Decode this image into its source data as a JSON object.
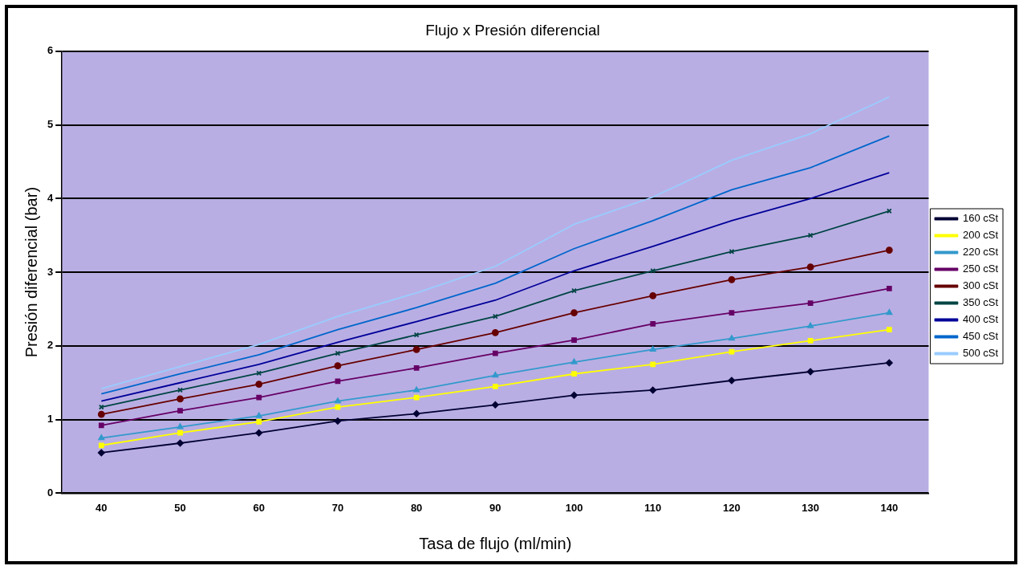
{
  "chart_data": {
    "type": "line",
    "title": "Flujo x Presión diferencial",
    "xlabel": "Tasa de flujo (ml/min)",
    "ylabel": "Presión diferencial (bar)",
    "categories": [
      "40",
      "50",
      "60",
      "70",
      "80",
      "90",
      "100",
      "110",
      "120",
      "130",
      "140"
    ],
    "ylim": [
      0,
      6
    ],
    "yticks": [
      0,
      1,
      2,
      3,
      4,
      5,
      6
    ],
    "grid": "y",
    "legend": "right",
    "series": [
      {
        "name": "160 cSt",
        "color": "#000033",
        "marker": "diamond",
        "values": [
          0.55,
          0.68,
          0.82,
          0.98,
          1.08,
          1.2,
          1.33,
          1.4,
          1.53,
          1.65,
          1.77
        ]
      },
      {
        "name": "200 cSt",
        "color": "#ffff00",
        "marker": "square",
        "values": [
          0.65,
          0.82,
          0.97,
          1.17,
          1.3,
          1.45,
          1.62,
          1.75,
          1.92,
          2.07,
          2.22
        ]
      },
      {
        "name": "220 cSt",
        "color": "#3399cc",
        "marker": "triangle",
        "values": [
          0.75,
          0.9,
          1.05,
          1.25,
          1.4,
          1.6,
          1.78,
          1.95,
          2.1,
          2.27,
          2.45
        ]
      },
      {
        "name": "250 cSt",
        "color": "#660066",
        "marker": "square",
        "values": [
          0.92,
          1.12,
          1.3,
          1.52,
          1.7,
          1.9,
          2.08,
          2.3,
          2.45,
          2.58,
          2.78
        ]
      },
      {
        "name": "300 cSt",
        "color": "#660000",
        "marker": "circle",
        "values": [
          1.07,
          1.28,
          1.48,
          1.73,
          1.95,
          2.18,
          2.45,
          2.68,
          2.9,
          3.07,
          3.3
        ]
      },
      {
        "name": "350 cSt",
        "color": "#004444",
        "marker": "cross",
        "values": [
          1.17,
          1.4,
          1.63,
          1.9,
          2.15,
          2.4,
          2.75,
          3.02,
          3.28,
          3.5,
          3.83
        ]
      },
      {
        "name": "400 cSt",
        "color": "#000099",
        "marker": "none",
        "values": [
          1.25,
          1.5,
          1.75,
          2.05,
          2.33,
          2.62,
          3.02,
          3.35,
          3.7,
          4.0,
          4.35
        ]
      },
      {
        "name": "450 cSt",
        "color": "#0066cc",
        "marker": "none",
        "values": [
          1.35,
          1.62,
          1.88,
          2.22,
          2.52,
          2.85,
          3.32,
          3.7,
          4.12,
          4.42,
          4.85
        ]
      },
      {
        "name": "500 cSt",
        "color": "#99ccff",
        "marker": "none",
        "values": [
          1.42,
          1.72,
          2.02,
          2.4,
          2.72,
          3.08,
          3.65,
          4.02,
          4.52,
          4.88,
          5.38
        ]
      }
    ]
  }
}
